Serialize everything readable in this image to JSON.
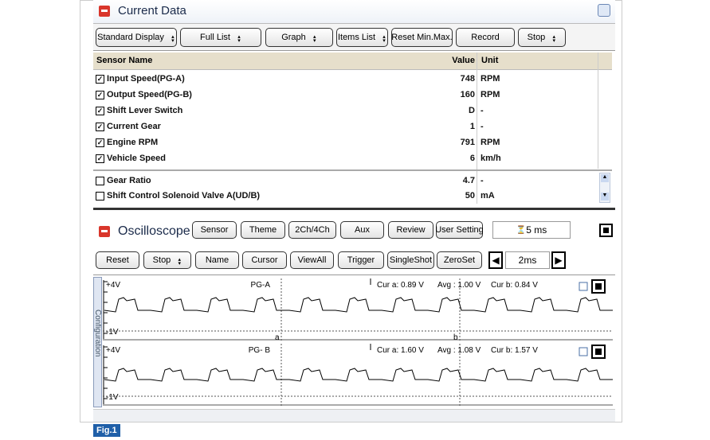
{
  "current_data": {
    "title": "Current Data",
    "toolbar": [
      {
        "label": "Standard Display",
        "dropdown": true
      },
      {
        "label": "Full List",
        "dropdown": true
      },
      {
        "label": "Graph",
        "dropdown": true
      },
      {
        "label": "Items List",
        "dropdown": true
      },
      {
        "label": "Reset Min.Max.",
        "dropdown": false
      },
      {
        "label": "Record",
        "dropdown": false
      },
      {
        "label": "Stop",
        "dropdown": true
      }
    ],
    "columns": [
      "Sensor Name",
      "Value",
      "Unit"
    ],
    "rows": [
      {
        "checked": true,
        "name": "Input Speed(PG-A)",
        "value": "748",
        "unit": "RPM"
      },
      {
        "checked": true,
        "name": "Output Speed(PG-B)",
        "value": "160",
        "unit": "RPM"
      },
      {
        "checked": true,
        "name": "Shift Lever Switch",
        "value": "D",
        "unit": "-"
      },
      {
        "checked": true,
        "name": "Current Gear",
        "value": "1",
        "unit": "-"
      },
      {
        "checked": true,
        "name": "Engine RPM",
        "value": "791",
        "unit": "RPM"
      },
      {
        "checked": true,
        "name": "Vehicle Speed",
        "value": "6",
        "unit": "km/h"
      }
    ],
    "extra_rows": [
      {
        "checked": false,
        "name": "Gear Ratio",
        "value": "4.7",
        "unit": "-"
      },
      {
        "checked": false,
        "name": "Shift Control Solenoid Valve A(UD/B)",
        "value": "50",
        "unit": "mA"
      }
    ]
  },
  "oscilloscope": {
    "title": "Oscilloscope",
    "buttons": [
      "Sensor",
      "Theme",
      "2Ch/4Ch",
      "Aux",
      "Review",
      "User Setting"
    ],
    "time": "5 ms",
    "controls": [
      {
        "label": "Reset",
        "dropdown": false
      },
      {
        "label": "Stop",
        "dropdown": true
      },
      {
        "label": "Name",
        "dropdown": false
      },
      {
        "label": "Cursor",
        "dropdown": false
      },
      {
        "label": "ViewAll",
        "dropdown": false
      },
      {
        "label": "Trigger",
        "dropdown": false
      },
      {
        "label": "SingleShot",
        "dropdown": false
      },
      {
        "label": "ZeroSet",
        "dropdown": false
      }
    ],
    "timebase": "2ms",
    "side_label": "Configuration",
    "channels": [
      {
        "top": "+4V",
        "bottom": "-1V",
        "name": "PG-A",
        "cur_a": "Cur a: 0.89 V",
        "avg": "Avg : 1.00 V",
        "cur_b": "Cur b: 0.84 V",
        "cursor_a": "a",
        "cursor_b": "b"
      },
      {
        "top": "+4V",
        "bottom": "-1V",
        "name": "PG- B",
        "cur_a": "Cur a: 1.60 V",
        "avg": "Avg : 1.08 V",
        "cur_b": "Cur b: 1.57 V"
      }
    ]
  },
  "figure_label": "Fig.1"
}
